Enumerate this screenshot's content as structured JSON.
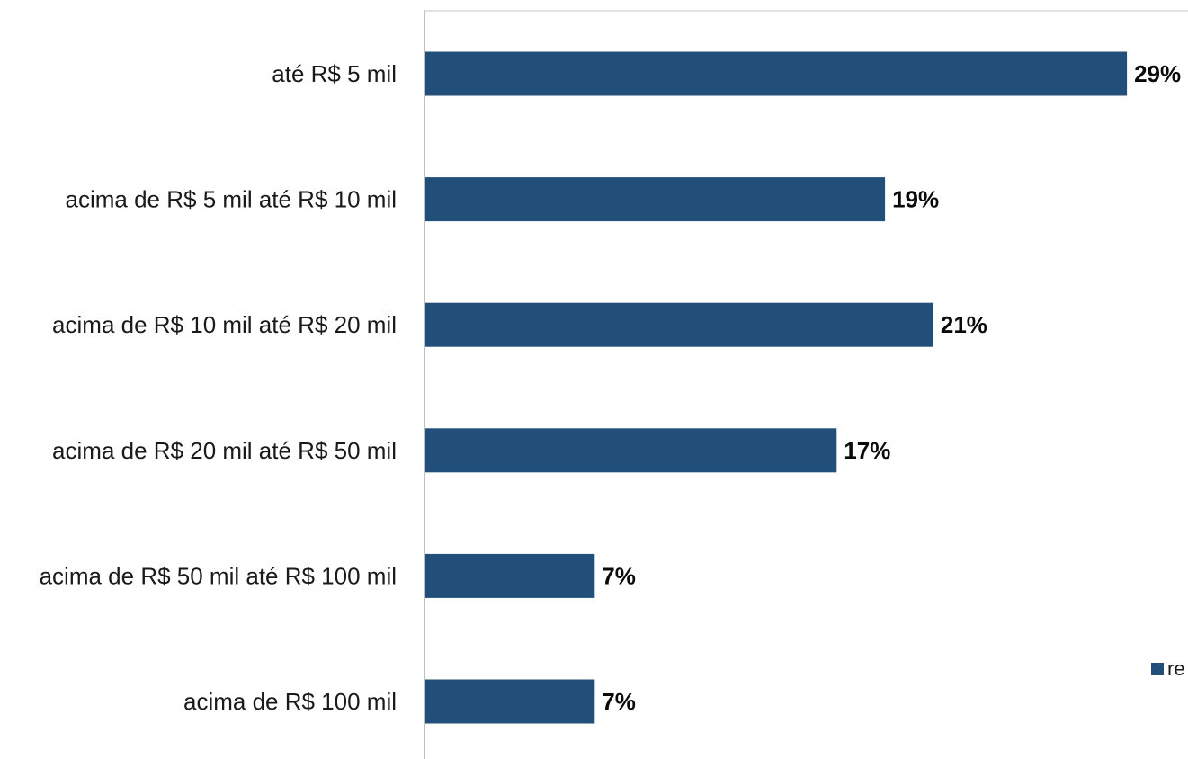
{
  "chart_data": {
    "type": "bar",
    "orientation": "horizontal",
    "categories": [
      "até R$ 5 mil",
      "acima de R$ 5 mil até R$ 10 mil",
      "acima de R$ 10 mil até R$ 20 mil",
      "acima de R$ 20 mil até R$ 50 mil",
      "acima de R$ 50 mil até R$ 100 mil",
      "acima de R$ 100 mil"
    ],
    "values": [
      29,
      19,
      21,
      17,
      7,
      7
    ],
    "value_labels": [
      "29%",
      "19%",
      "21%",
      "17%",
      "7%",
      "7%"
    ],
    "title": "",
    "xlabel": "",
    "ylabel": "",
    "xlim": [
      0,
      30
    ],
    "grid": false,
    "series_color": "#214f79",
    "legend": {
      "placement": "right",
      "entries": [
        {
          "label": "re",
          "color": "#214f79"
        }
      ]
    }
  }
}
